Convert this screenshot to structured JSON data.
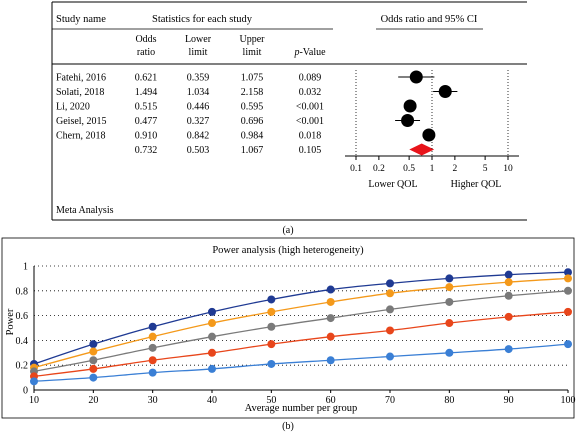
{
  "chart_data": [
    {
      "type": "table",
      "panel_label": "(a)",
      "headers": {
        "study_name": "Study name",
        "stats_group": "Statistics for each study",
        "or_line1": "Odds",
        "or_line2": "ratio",
        "lower_line1": "Lower",
        "lower_line2": "limit",
        "upper_line1": "Upper",
        "upper_line2": "limit",
        "p_prefix": "p",
        "p_suffix": "-Value",
        "forest_title": "Odds ratio and 95% CI"
      },
      "rows": [
        {
          "name": "Fatehi, 2016",
          "or": "0.621",
          "lower": "0.359",
          "upper": "1.075",
          "p": "0.089",
          "or_value": 0.621,
          "lower_value": 0.359,
          "upper_value": 1.075
        },
        {
          "name": "Solati, 2018",
          "or": "1.494",
          "lower": "1.034",
          "upper": "2.158",
          "p": "0.032",
          "or_value": 1.494,
          "lower_value": 1.034,
          "upper_value": 2.158
        },
        {
          "name": "Li, 2020",
          "or": "0.515",
          "lower": "0.446",
          "upper": "0.595",
          "p": "<0.001",
          "or_value": 0.515,
          "lower_value": 0.446,
          "upper_value": 0.595
        },
        {
          "name": "Geisel, 2015",
          "or": "0.477",
          "lower": "0.327",
          "upper": "0.696",
          "p": "<0.001",
          "or_value": 0.477,
          "lower_value": 0.327,
          "upper_value": 0.696
        },
        {
          "name": "Chern, 2018",
          "or": "0.910",
          "lower": "0.842",
          "upper": "0.984",
          "p": "0.018",
          "or_value": 0.91,
          "lower_value": 0.842,
          "upper_value": 0.984
        }
      ],
      "summary": {
        "name": "",
        "or": "0.732",
        "lower": "0.503",
        "upper": "1.067",
        "p": "0.105",
        "or_value": 0.732,
        "lower_value": 0.503,
        "upper_value": 1.067
      },
      "x_scale": "log",
      "x_ticks": [
        0.1,
        0.2,
        0.5,
        1,
        2,
        5,
        10
      ],
      "x_tick_labels": [
        "0.1",
        "0.2",
        "0.5",
        "1",
        "2",
        "5",
        "10"
      ],
      "left_label": "Lower QOL",
      "right_label": "Higher QOL",
      "footer": "Meta Analysis",
      "colors": {
        "point": "#000000",
        "summary": "#e8141b"
      }
    },
    {
      "type": "line",
      "panel_label": "(b)",
      "title": "Power analysis (high heterogeneity)",
      "xlabel": "Average number per group",
      "ylabel": "Power",
      "x": [
        10,
        20,
        30,
        40,
        50,
        60,
        70,
        80,
        90,
        100
      ],
      "xlim": [
        10,
        100
      ],
      "ylim": [
        0,
        1
      ],
      "x_ticks": [
        10,
        20,
        30,
        40,
        50,
        60,
        70,
        80,
        90,
        100
      ],
      "y_ticks": [
        0,
        0.2,
        0.4,
        0.6,
        0.8,
        1
      ],
      "y_tick_labels": [
        "0",
        "0.2",
        "0.4",
        "0.6",
        "0.8",
        "1"
      ],
      "grid": "horizontal dotted",
      "series": [
        {
          "color": "#1f3a93",
          "values": [
            0.21,
            0.37,
            0.51,
            0.63,
            0.73,
            0.81,
            0.86,
            0.9,
            0.93,
            0.95
          ]
        },
        {
          "color": "#f4991a",
          "values": [
            0.18,
            0.31,
            0.43,
            0.54,
            0.63,
            0.71,
            0.78,
            0.83,
            0.87,
            0.9
          ]
        },
        {
          "color": "#7a7a7a",
          "values": [
            0.15,
            0.24,
            0.34,
            0.43,
            0.51,
            0.58,
            0.65,
            0.71,
            0.76,
            0.8
          ]
        },
        {
          "color": "#e8461b",
          "values": [
            0.11,
            0.17,
            0.24,
            0.3,
            0.37,
            0.43,
            0.48,
            0.54,
            0.59,
            0.63
          ]
        },
        {
          "color": "#3a7fd5",
          "values": [
            0.07,
            0.1,
            0.14,
            0.17,
            0.21,
            0.24,
            0.27,
            0.3,
            0.33,
            0.37
          ]
        }
      ]
    }
  ]
}
